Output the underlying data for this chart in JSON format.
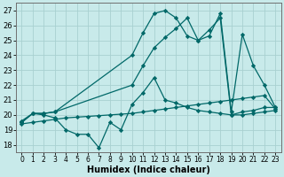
{
  "xlabel": "Humidex (Indice chaleur)",
  "background_color": "#c8eaea",
  "grid_color": "#a8d0d0",
  "line_color": "#006868",
  "xlim": [
    -0.5,
    23.5
  ],
  "ylim": [
    17.5,
    27.5
  ],
  "yticks": [
    18,
    19,
    20,
    21,
    22,
    23,
    24,
    25,
    26,
    27
  ],
  "xticks": [
    0,
    1,
    2,
    3,
    4,
    5,
    6,
    7,
    8,
    9,
    10,
    11,
    12,
    13,
    14,
    15,
    16,
    17,
    18,
    19,
    20,
    21,
    22,
    23
  ],
  "series": [
    {
      "x": [
        0,
        1,
        2,
        3,
        4,
        5,
        6,
        7,
        8,
        9,
        10,
        11,
        12,
        13,
        14,
        15,
        16,
        17,
        18,
        19,
        20,
        21,
        22,
        23
      ],
      "y": [
        19.6,
        20.1,
        20.0,
        19.8,
        19.0,
        18.7,
        18.7,
        17.8,
        19.5,
        19.0,
        20.7,
        21.5,
        22.5,
        21.0,
        20.8,
        20.5,
        20.3,
        20.2,
        20.1,
        20.0,
        20.0,
        20.1,
        20.2,
        20.3
      ]
    },
    {
      "x": [
        0,
        1,
        2,
        3,
        10,
        11,
        12,
        13,
        14,
        15,
        16,
        17,
        18,
        19,
        20,
        21,
        22,
        23
      ],
      "y": [
        19.5,
        20.1,
        20.1,
        20.2,
        24.0,
        25.5,
        26.8,
        27.0,
        26.5,
        25.3,
        25.0,
        25.7,
        26.5,
        20.0,
        20.2,
        20.3,
        20.5,
        20.5
      ]
    },
    {
      "x": [
        0,
        1,
        2,
        3,
        10,
        11,
        12,
        13,
        14,
        15,
        16,
        17,
        18,
        19,
        20,
        21,
        22,
        23
      ],
      "y": [
        19.5,
        20.1,
        20.1,
        20.2,
        22.0,
        23.3,
        24.5,
        25.2,
        25.8,
        26.5,
        25.0,
        25.3,
        26.8,
        20.2,
        25.4,
        23.3,
        22.0,
        20.5
      ]
    },
    {
      "x": [
        0,
        1,
        2,
        3,
        4,
        5,
        6,
        7,
        8,
        9,
        10,
        11,
        12,
        13,
        14,
        15,
        16,
        17,
        18,
        19,
        20,
        21,
        22,
        23
      ],
      "y": [
        19.4,
        19.5,
        19.6,
        19.7,
        19.8,
        19.85,
        19.9,
        19.95,
        20.0,
        20.05,
        20.1,
        20.2,
        20.3,
        20.4,
        20.5,
        20.6,
        20.7,
        20.8,
        20.9,
        21.0,
        21.1,
        21.2,
        21.3,
        20.4
      ]
    }
  ]
}
